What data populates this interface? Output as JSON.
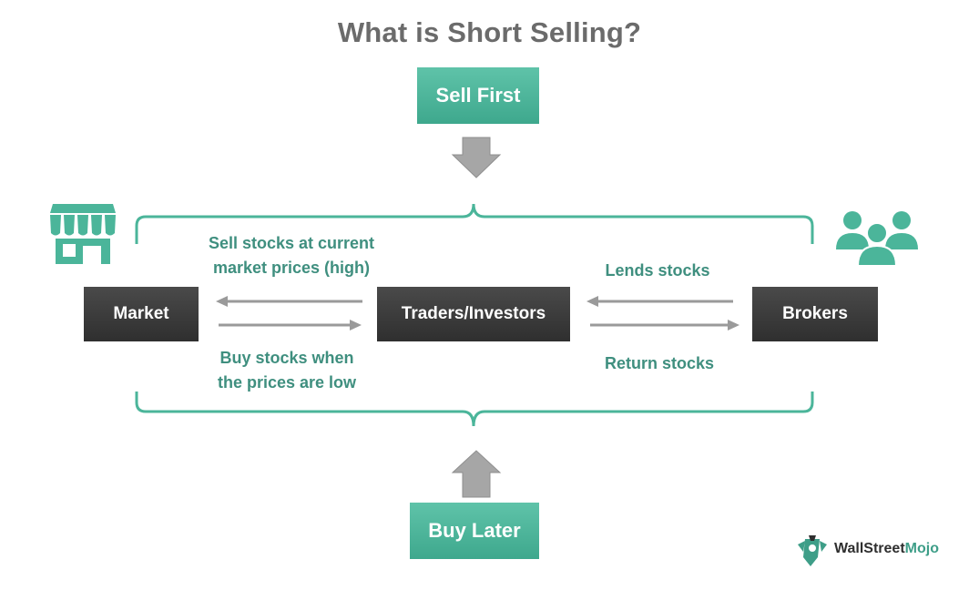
{
  "title": "What is Short Selling?",
  "nodes": {
    "sell_first": "Sell First",
    "buy_later": "Buy Later",
    "market": "Market",
    "traders": "Traders/Investors",
    "brokers": "Brokers"
  },
  "edges": {
    "sell_line1": "Sell stocks at current",
    "sell_line2": "market prices (high)",
    "buy_line1": "Buy stocks when",
    "buy_line2": "the prices are low",
    "lends": "Lends stocks",
    "return": "Return stocks"
  },
  "icons": {
    "market": "store-icon",
    "brokers": "people-group-icon"
  },
  "logo": {
    "word1": "WallStreet",
    "word2": "Mojo"
  },
  "colors": {
    "teal": "#4bb59a",
    "teal_text": "#3f8f7f",
    "dark_box": "#3a3a3a",
    "arrow_gray": "#9a9a9a"
  }
}
